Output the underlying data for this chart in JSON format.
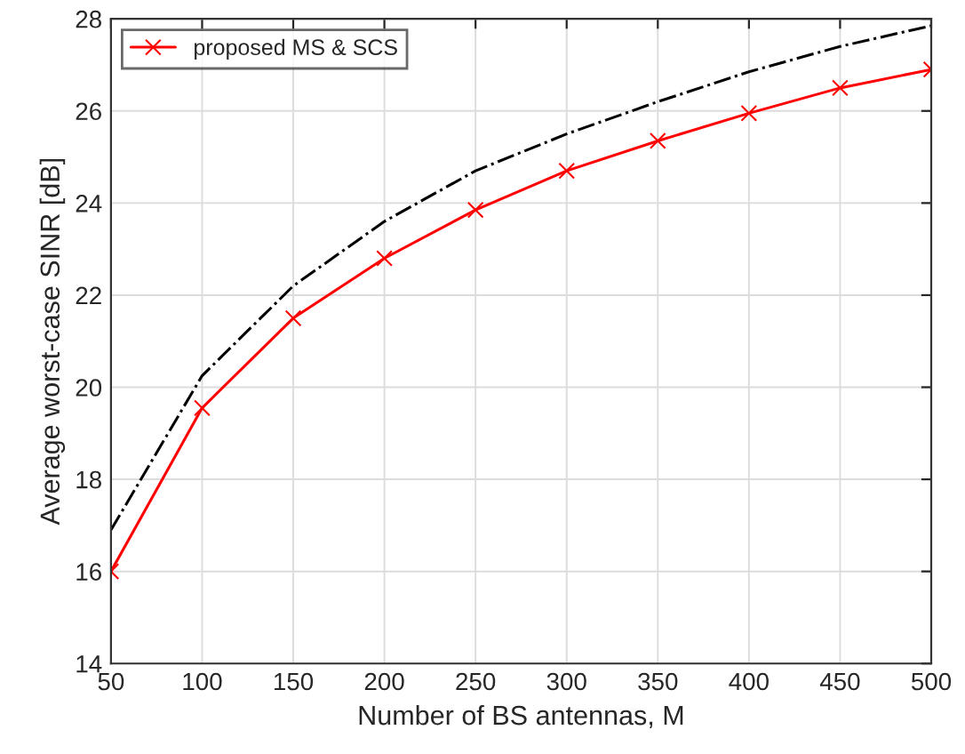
{
  "chart_data": {
    "type": "line",
    "xlabel": "Number of BS antennas, M",
    "ylabel": "Average worst-case SINR [dB]",
    "x": [
      50,
      100,
      150,
      200,
      250,
      300,
      350,
      400,
      450,
      500
    ],
    "series": [
      {
        "color": "#000000",
        "line_style": "dashdot",
        "marker": "none",
        "values": [
          16.9,
          20.25,
          22.2,
          23.6,
          24.7,
          25.5,
          26.2,
          26.85,
          27.4,
          27.85
        ]
      },
      {
        "name": "proposed MS & SCS",
        "color": "#ff0000",
        "line_style": "solid",
        "marker": "cross",
        "values": [
          16.0,
          19.55,
          21.5,
          22.8,
          23.85,
          24.7,
          25.35,
          25.95,
          26.5,
          26.9
        ]
      }
    ],
    "xlim": [
      50,
      500
    ],
    "xticks": [
      50,
      100,
      150,
      200,
      250,
      300,
      350,
      400,
      450,
      500
    ],
    "ylim": [
      14,
      28
    ],
    "yticks": [
      14,
      16,
      18,
      20,
      22,
      24,
      26,
      28
    ],
    "grid": true,
    "legend": "top left"
  }
}
